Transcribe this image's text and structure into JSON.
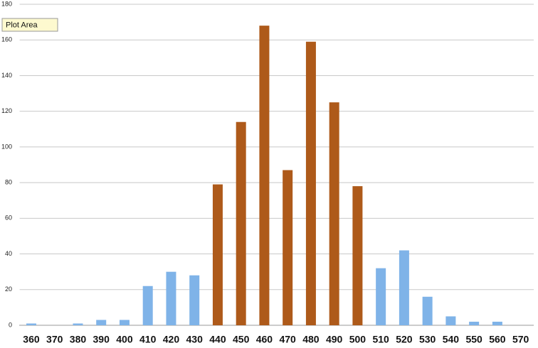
{
  "chart_data": {
    "type": "bar",
    "annotation": "Plot Area",
    "categories": [
      "360",
      "370",
      "380",
      "390",
      "400",
      "410",
      "420",
      "430",
      "440",
      "450",
      "460",
      "470",
      "480",
      "490",
      "500",
      "510",
      "520",
      "530",
      "540",
      "550",
      "560",
      "570"
    ],
    "values": [
      1,
      0,
      1,
      3,
      3,
      22,
      30,
      28,
      79,
      114,
      168,
      87,
      159,
      125,
      78,
      32,
      42,
      16,
      5,
      2,
      2,
      0
    ],
    "colors": [
      "#7fb3e8",
      "#7fb3e8",
      "#7fb3e8",
      "#7fb3e8",
      "#7fb3e8",
      "#7fb3e8",
      "#7fb3e8",
      "#7fb3e8",
      "#ae5a1a",
      "#ae5a1a",
      "#ae5a1a",
      "#ae5a1a",
      "#ae5a1a",
      "#ae5a1a",
      "#ae5a1a",
      "#7fb3e8",
      "#7fb3e8",
      "#7fb3e8",
      "#7fb3e8",
      "#7fb3e8",
      "#7fb3e8",
      "#7fb3e8"
    ],
    "ylim": [
      0,
      180
    ],
    "yticks": [
      0,
      20,
      40,
      60,
      80,
      100,
      120,
      140,
      160,
      180
    ],
    "grid": true
  }
}
